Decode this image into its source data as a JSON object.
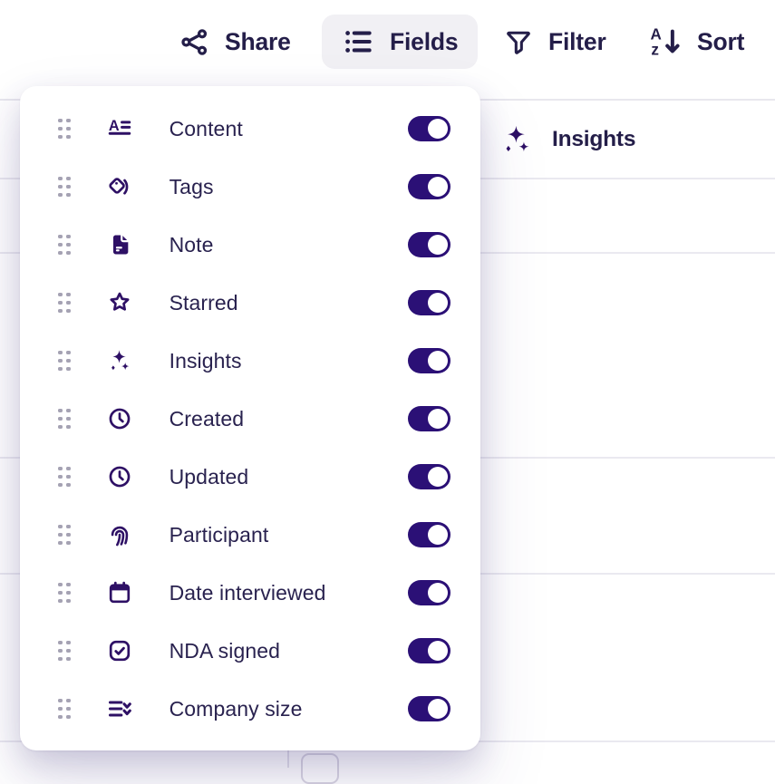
{
  "toolbar": {
    "share_label": "Share",
    "fields_label": "Fields",
    "filter_label": "Filter",
    "sort_label": "Sort",
    "active_button": "Fields"
  },
  "background_table": {
    "insights_column_label": "Insights",
    "insights_column_icon": "sparkles-icon"
  },
  "fields_panel": {
    "items": [
      {
        "label": "Content",
        "icon": "article",
        "enabled": true
      },
      {
        "label": "Tags",
        "icon": "tags",
        "enabled": true
      },
      {
        "label": "Note",
        "icon": "note",
        "enabled": true
      },
      {
        "label": "Starred",
        "icon": "star",
        "enabled": true
      },
      {
        "label": "Insights",
        "icon": "sparkles",
        "enabled": true
      },
      {
        "label": "Created",
        "icon": "clock",
        "enabled": true
      },
      {
        "label": "Updated",
        "icon": "clock",
        "enabled": true
      },
      {
        "label": "Participant",
        "icon": "fingerprint",
        "enabled": true
      },
      {
        "label": "Date interviewed",
        "icon": "calendar",
        "enabled": true
      },
      {
        "label": "NDA signed",
        "icon": "check-square",
        "enabled": true
      },
      {
        "label": "Company size",
        "icon": "list-chevrons",
        "enabled": true
      }
    ]
  },
  "colors": {
    "icon_ink": "#2e1065",
    "toggle_on": "#2b1076",
    "label_ink": "#29224f",
    "toolbar_ink": "#241e49",
    "divider": "#eae9f0",
    "active_button_bg": "#f1f0f4",
    "drag_dot": "#a5a2b3"
  }
}
